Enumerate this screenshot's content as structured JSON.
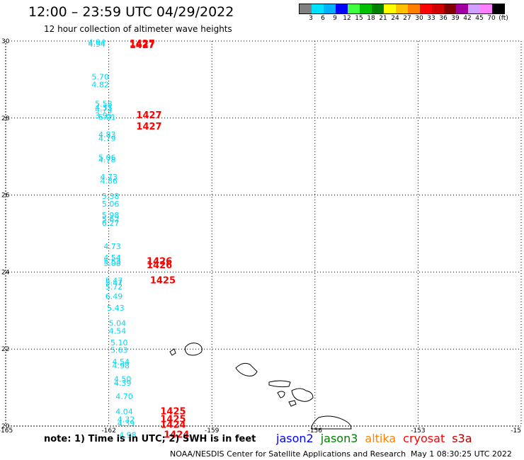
{
  "title": "12:00 – 23:59 UTC 04/29/2022",
  "subtitle": "12 hour collection of altimeter wave heights",
  "legend": {
    "colors": [
      "#808080",
      "#00e0ff",
      "#00b0ff",
      "#0000ff",
      "#40ff40",
      "#00c000",
      "#008000",
      "#ffff00",
      "#ffc000",
      "#ff8000",
      "#ff0000",
      "#d00000",
      "#800000",
      "#a000a0",
      "#d0a0ff",
      "#ff80ff",
      "#000000"
    ],
    "labels": [
      "3",
      "6",
      "9",
      "12",
      "15",
      "18",
      "21",
      "24",
      "27",
      "30",
      "33",
      "36",
      "39",
      "42",
      "45",
      "70",
      "(ft)"
    ]
  },
  "axes": {
    "x_ticks": [
      "-165",
      "-162",
      "-159",
      "-156",
      "-153",
      "-15"
    ],
    "y_ticks": [
      "30",
      "28",
      "26",
      "24",
      "22",
      "20"
    ]
  },
  "chart_data": {
    "type": "scatter",
    "xlim": [
      -165,
      -150
    ],
    "ylim": [
      20,
      30
    ],
    "grid": true,
    "wave_heights": [
      {
        "lon": -162.6,
        "lat": 29.9,
        "value": "4.94"
      },
      {
        "lon": -162.6,
        "lat": 29.85,
        "value": "4.94"
      },
      {
        "lon": -162.5,
        "lat": 29.0,
        "value": "5.70"
      },
      {
        "lon": -162.5,
        "lat": 28.8,
        "value": "4.82"
      },
      {
        "lon": -162.4,
        "lat": 28.3,
        "value": "5.58"
      },
      {
        "lon": -162.4,
        "lat": 28.2,
        "value": "4.35"
      },
      {
        "lon": -162.4,
        "lat": 28.15,
        "value": "4.74"
      },
      {
        "lon": -162.4,
        "lat": 28.0,
        "value": "3.95"
      },
      {
        "lon": -162.3,
        "lat": 27.95,
        "value": "5.01"
      },
      {
        "lon": -162.3,
        "lat": 27.5,
        "value": "4.83"
      },
      {
        "lon": -162.3,
        "lat": 27.4,
        "value": "4.79"
      },
      {
        "lon": -162.3,
        "lat": 26.9,
        "value": "5.06"
      },
      {
        "lon": -162.3,
        "lat": 26.85,
        "value": "4.78"
      },
      {
        "lon": -162.25,
        "lat": 26.4,
        "value": "4.73"
      },
      {
        "lon": -162.25,
        "lat": 26.3,
        "value": "4.86"
      },
      {
        "lon": -162.2,
        "lat": 25.9,
        "value": "5.38"
      },
      {
        "lon": -162.2,
        "lat": 25.7,
        "value": "5.06"
      },
      {
        "lon": -162.2,
        "lat": 25.4,
        "value": "5.98"
      },
      {
        "lon": -162.2,
        "lat": 25.3,
        "value": "5.62"
      },
      {
        "lon": -162.2,
        "lat": 25.2,
        "value": "6.27"
      },
      {
        "lon": -162.15,
        "lat": 24.6,
        "value": "4.73"
      },
      {
        "lon": -162.15,
        "lat": 24.3,
        "value": "4.54"
      },
      {
        "lon": -162.15,
        "lat": 24.2,
        "value": "5.53"
      },
      {
        "lon": -162.15,
        "lat": 24.15,
        "value": "5.08"
      },
      {
        "lon": -162.1,
        "lat": 23.7,
        "value": "5.47"
      },
      {
        "lon": -162.1,
        "lat": 23.65,
        "value": "5.47"
      },
      {
        "lon": -162.1,
        "lat": 23.55,
        "value": "5.72"
      },
      {
        "lon": -162.1,
        "lat": 23.3,
        "value": "6.49"
      },
      {
        "lon": -162.05,
        "lat": 23.0,
        "value": "5.43"
      },
      {
        "lon": -162.0,
        "lat": 22.6,
        "value": "5.04"
      },
      {
        "lon": -162.0,
        "lat": 22.4,
        "value": "4.54"
      },
      {
        "lon": -161.95,
        "lat": 22.1,
        "value": "5.10"
      },
      {
        "lon": -161.95,
        "lat": 21.9,
        "value": "5.63"
      },
      {
        "lon": -161.9,
        "lat": 21.6,
        "value": "4.54"
      },
      {
        "lon": -161.9,
        "lat": 21.5,
        "value": "4.98"
      },
      {
        "lon": -161.85,
        "lat": 21.15,
        "value": "4.50"
      },
      {
        "lon": -161.85,
        "lat": 21.05,
        "value": "4.39"
      },
      {
        "lon": -161.8,
        "lat": 20.7,
        "value": "4.70"
      },
      {
        "lon": -161.8,
        "lat": 20.3,
        "value": "4.04"
      },
      {
        "lon": -161.75,
        "lat": 20.1,
        "value": "4.32"
      },
      {
        "lon": -161.75,
        "lat": 20.0,
        "value": "4.39"
      },
      {
        "lon": -161.7,
        "lat": 19.7,
        "value": "4.98"
      }
    ],
    "pass_times": [
      {
        "lon": -161.4,
        "lat": 29.85,
        "value": "1427"
      },
      {
        "lon": -161.4,
        "lat": 29.82,
        "value": "1427"
      },
      {
        "lon": -161.2,
        "lat": 28.0,
        "value": "1427"
      },
      {
        "lon": -161.2,
        "lat": 27.7,
        "value": "1427"
      },
      {
        "lon": -160.9,
        "lat": 24.2,
        "value": "1426"
      },
      {
        "lon": -160.9,
        "lat": 24.1,
        "value": "1426"
      },
      {
        "lon": -160.8,
        "lat": 23.7,
        "value": "1425"
      },
      {
        "lon": -160.5,
        "lat": 20.3,
        "value": "1425"
      },
      {
        "lon": -160.5,
        "lat": 20.1,
        "value": "1425"
      },
      {
        "lon": -160.5,
        "lat": 19.95,
        "value": "1424"
      },
      {
        "lon": -160.4,
        "lat": 19.7,
        "value": "1424"
      }
    ]
  },
  "footer": {
    "note": "note:  1) Time is in UTC;  2) SWH is in feet",
    "satellites": [
      {
        "name": "jason2",
        "color": "#0000ff"
      },
      {
        "name": "jason3",
        "color": "#008000"
      },
      {
        "name": "altika",
        "color": "#ff8000"
      },
      {
        "name": "cryosat",
        "color": "#ff0000"
      },
      {
        "name": "s3a",
        "color": "#b00000"
      }
    ],
    "credit": "NOAA/NESDIS Center for Satellite Applications and Research",
    "date": "May  1 08:30:25 UTC 2022"
  },
  "colors": {
    "wave": "#00d8f0",
    "pass": "#ff0000",
    "grid": "#000000"
  }
}
